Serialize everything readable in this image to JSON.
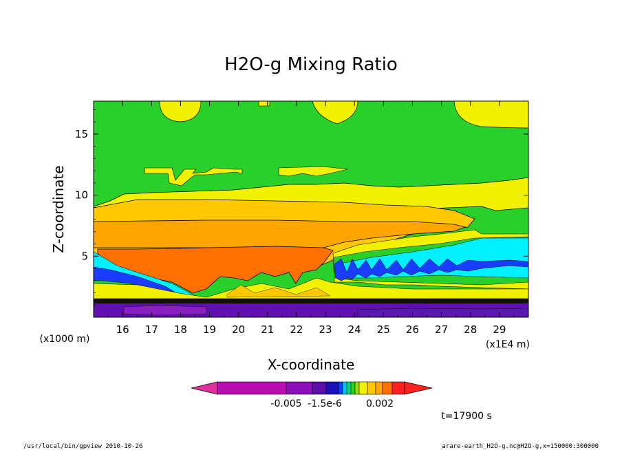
{
  "chart_data": {
    "type": "contour",
    "title": "H2O-g Mixing Ratio",
    "xlabel": "X-coordinate",
    "ylabel": "Z-coordinate",
    "x_units": "(x1E4 m)",
    "y_units": "(x1000 m)",
    "x_ticks": [
      16,
      17,
      18,
      19,
      20,
      21,
      22,
      23,
      24,
      25,
      26,
      27,
      28,
      29
    ],
    "y_ticks": [
      5,
      10,
      15
    ],
    "xlim": [
      15.0,
      30.0
    ],
    "ylim": [
      0,
      17.7
    ],
    "colorbar": {
      "labels": [
        "-0.005",
        "-1.5e-6",
        "0.002"
      ],
      "colors": [
        "#e0309f",
        "#b80fb0",
        "#8a0fb8",
        "#5a10a6",
        "#1a10b8",
        "#0a40ff",
        "#00c8f0",
        "#00d878",
        "#30d020",
        "#98e000",
        "#f0f000",
        "#ffc800",
        "#ffa800",
        "#ff7000",
        "#ff2020"
      ]
    },
    "time_label": "t=17900 s"
  },
  "footer": {
    "left": "/usr/local/bin/gpview  2010-10-26",
    "right": "arare-earth_H2O-g.nc@H2O-g,x=150000:300000"
  },
  "colors": {
    "green": "#2ad02a",
    "yellow": "#f2f200",
    "light_orange": "#ffc800",
    "orange": "#ffa500",
    "dark_orange": "#ff7000",
    "cyan": "#00f0ff",
    "blue": "#1a3cff",
    "purple": "#6010b0",
    "violet": "#8a20c0"
  }
}
